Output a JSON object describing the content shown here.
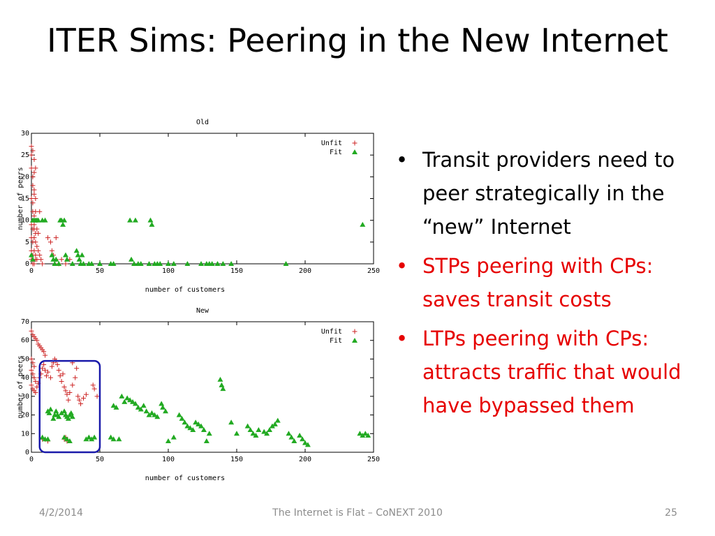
{
  "slide": {
    "title": "ITER Sims: Peering in the New Internet",
    "bullets": [
      {
        "text": "Transit providers need to peer strategically in the “new” Internet",
        "color": "#000000"
      },
      {
        "text": "STPs peering with CPs: saves transit costs",
        "color": "#e60000"
      },
      {
        "text": "LTPs peering with CPs: attracts traffic that would have bypassed them",
        "color": "#e60000"
      }
    ],
    "bullet_glyph": "•",
    "footer": {
      "date": "4/2/2014",
      "center": "The Internet is Flat – CoNEXT 2010",
      "page": "25"
    }
  },
  "chart_data": [
    {
      "type": "scatter",
      "title": "Old",
      "xlabel": "number of customers",
      "ylabel": "number of peers",
      "xlim": [
        0,
        250
      ],
      "ylim": [
        0,
        30
      ],
      "xticks": [
        0,
        50,
        100,
        150,
        200,
        250
      ],
      "yticks": [
        0,
        5,
        10,
        15,
        20,
        25,
        30
      ],
      "legend_position": "top-right",
      "grid": false,
      "series": [
        {
          "name": "Unfit",
          "marker": "plus",
          "color": "#cc2222",
          "points": [
            [
              0,
              27
            ],
            [
              0,
              25
            ],
            [
              1,
              26
            ],
            [
              0,
              22
            ],
            [
              1,
              20
            ],
            [
              2,
              21
            ],
            [
              3,
              22
            ],
            [
              1,
              18
            ],
            [
              2,
              17
            ],
            [
              0,
              15
            ],
            [
              1,
              14
            ],
            [
              2,
              16
            ],
            [
              3,
              15
            ],
            [
              1,
              12
            ],
            [
              2,
              11
            ],
            [
              3,
              12
            ],
            [
              4,
              10
            ],
            [
              0,
              9
            ],
            [
              1,
              8
            ],
            [
              2,
              8
            ],
            [
              3,
              7
            ],
            [
              0,
              6
            ],
            [
              1,
              5
            ],
            [
              2,
              6
            ],
            [
              3,
              5
            ],
            [
              4,
              4
            ],
            [
              0,
              3
            ],
            [
              1,
              2
            ],
            [
              2,
              3
            ],
            [
              3,
              2
            ],
            [
              4,
              1
            ],
            [
              0,
              1
            ],
            [
              1,
              0
            ],
            [
              2,
              0
            ],
            [
              3,
              1
            ],
            [
              5,
              3
            ],
            [
              5,
              7
            ],
            [
              6,
              2
            ],
            [
              7,
              1
            ],
            [
              8,
              0
            ],
            [
              12,
              6
            ],
            [
              14,
              5
            ],
            [
              16,
              2
            ],
            [
              18,
              1
            ],
            [
              20,
              0
            ],
            [
              18,
              6
            ],
            [
              15,
              3
            ],
            [
              22,
              1
            ],
            [
              25,
              0
            ],
            [
              28,
              1
            ],
            [
              6,
              12
            ],
            [
              2,
              24
            ],
            [
              2,
              9
            ],
            [
              4,
              8
            ]
          ]
        },
        {
          "name": "Fit",
          "marker": "triangle",
          "color": "#22aa22",
          "points": [
            [
              1,
              10
            ],
            [
              2,
              10
            ],
            [
              3,
              10
            ],
            [
              4,
              10
            ],
            [
              5,
              10
            ],
            [
              8,
              10
            ],
            [
              10,
              10
            ],
            [
              0,
              2
            ],
            [
              1,
              1
            ],
            [
              15,
              2
            ],
            [
              16,
              1
            ],
            [
              17,
              0
            ],
            [
              18,
              1
            ],
            [
              20,
              0
            ],
            [
              21,
              10
            ],
            [
              22,
              10
            ],
            [
              23,
              9
            ],
            [
              24,
              10
            ],
            [
              25,
              2
            ],
            [
              26,
              1
            ],
            [
              30,
              0
            ],
            [
              33,
              3
            ],
            [
              34,
              2
            ],
            [
              35,
              1
            ],
            [
              36,
              0
            ],
            [
              37,
              2
            ],
            [
              38,
              0
            ],
            [
              42,
              0
            ],
            [
              44,
              0
            ],
            [
              50,
              0
            ],
            [
              58,
              0
            ],
            [
              60,
              0
            ],
            [
              72,
              10
            ],
            [
              73,
              1
            ],
            [
              75,
              0
            ],
            [
              76,
              10
            ],
            [
              78,
              0
            ],
            [
              80,
              0
            ],
            [
              86,
              0
            ],
            [
              87,
              10
            ],
            [
              88,
              9
            ],
            [
              90,
              0
            ],
            [
              92,
              0
            ],
            [
              94,
              0
            ],
            [
              100,
              0
            ],
            [
              104,
              0
            ],
            [
              114,
              0
            ],
            [
              124,
              0
            ],
            [
              128,
              0
            ],
            [
              130,
              0
            ],
            [
              132,
              0
            ],
            [
              136,
              0
            ],
            [
              140,
              0
            ],
            [
              146,
              0
            ],
            [
              186,
              0
            ],
            [
              242,
              9
            ]
          ]
        }
      ]
    },
    {
      "type": "scatter",
      "title": "New",
      "xlabel": "number of customers",
      "ylabel": "number of peers",
      "xlim": [
        0,
        250
      ],
      "ylim": [
        0,
        70
      ],
      "xticks": [
        0,
        50,
        100,
        150,
        200,
        250
      ],
      "yticks": [
        0,
        10,
        20,
        30,
        40,
        50,
        60,
        70
      ],
      "legend_position": "top-right",
      "grid": false,
      "highlight_box": {
        "x": [
          6,
          50
        ],
        "y": [
          0,
          49
        ],
        "color": "#1a1aaa"
      },
      "series": [
        {
          "name": "Unfit",
          "marker": "plus",
          "color": "#cc2222",
          "points": [
            [
              0,
              65
            ],
            [
              1,
              63
            ],
            [
              2,
              62
            ],
            [
              3,
              61
            ],
            [
              4,
              60
            ],
            [
              5,
              58
            ],
            [
              6,
              57
            ],
            [
              7,
              56
            ],
            [
              8,
              55
            ],
            [
              9,
              54
            ],
            [
              10,
              52
            ],
            [
              0,
              50
            ],
            [
              1,
              48
            ],
            [
              2,
              46
            ],
            [
              0,
              44
            ],
            [
              1,
              42
            ],
            [
              2,
              40
            ],
            [
              3,
              38
            ],
            [
              0,
              36
            ],
            [
              1,
              34
            ],
            [
              2,
              33
            ],
            [
              3,
              32
            ],
            [
              4,
              35
            ],
            [
              5,
              37
            ],
            [
              6,
              40
            ],
            [
              7,
              42
            ],
            [
              8,
              45
            ],
            [
              9,
              47
            ],
            [
              10,
              44
            ],
            [
              11,
              41
            ],
            [
              12,
              43
            ],
            [
              14,
              40
            ],
            [
              15,
              46
            ],
            [
              16,
              48
            ],
            [
              17,
              50
            ],
            [
              18,
              49
            ],
            [
              19,
              47
            ],
            [
              20,
              44
            ],
            [
              21,
              41
            ],
            [
              22,
              38
            ],
            [
              23,
              42
            ],
            [
              24,
              35
            ],
            [
              25,
              33
            ],
            [
              26,
              31
            ],
            [
              27,
              28
            ],
            [
              28,
              32
            ],
            [
              30,
              36
            ],
            [
              32,
              40
            ],
            [
              34,
              30
            ],
            [
              35,
              28
            ],
            [
              36,
              26
            ],
            [
              38,
              29
            ],
            [
              40,
              31
            ],
            [
              45,
              36
            ],
            [
              46,
              34
            ],
            [
              48,
              30
            ],
            [
              8,
              7
            ],
            [
              10,
              7
            ],
            [
              12,
              6
            ],
            [
              24,
              7
            ],
            [
              25,
              8
            ],
            [
              26,
              6
            ],
            [
              30,
              48
            ],
            [
              33,
              45
            ]
          ]
        },
        {
          "name": "Fit",
          "marker": "triangle",
          "color": "#22aa22",
          "points": [
            [
              12,
              22
            ],
            [
              13,
              21
            ],
            [
              14,
              23
            ],
            [
              16,
              18
            ],
            [
              17,
              20
            ],
            [
              18,
              22
            ],
            [
              19,
              20
            ],
            [
              20,
              19
            ],
            [
              22,
              21
            ],
            [
              24,
              22
            ],
            [
              25,
              20
            ],
            [
              26,
              19
            ],
            [
              27,
              18
            ],
            [
              28,
              20
            ],
            [
              29,
              21
            ],
            [
              30,
              19
            ],
            [
              8,
              8
            ],
            [
              10,
              7
            ],
            [
              12,
              7
            ],
            [
              24,
              8
            ],
            [
              26,
              7
            ],
            [
              28,
              6
            ],
            [
              40,
              7
            ],
            [
              42,
              8
            ],
            [
              44,
              7
            ],
            [
              46,
              8
            ],
            [
              58,
              8
            ],
            [
              60,
              7
            ],
            [
              64,
              7
            ],
            [
              66,
              30
            ],
            [
              68,
              27
            ],
            [
              60,
              25
            ],
            [
              62,
              24
            ],
            [
              70,
              29
            ],
            [
              72,
              28
            ],
            [
              74,
              27
            ],
            [
              76,
              26
            ],
            [
              78,
              24
            ],
            [
              80,
              23
            ],
            [
              82,
              25
            ],
            [
              84,
              22
            ],
            [
              86,
              20
            ],
            [
              88,
              21
            ],
            [
              90,
              20
            ],
            [
              92,
              19
            ],
            [
              95,
              26
            ],
            [
              96,
              24
            ],
            [
              98,
              22
            ],
            [
              100,
              6
            ],
            [
              104,
              8
            ],
            [
              108,
              20
            ],
            [
              110,
              18
            ],
            [
              112,
              16
            ],
            [
              114,
              14
            ],
            [
              116,
              13
            ],
            [
              118,
              12
            ],
            [
              120,
              16
            ],
            [
              122,
              15
            ],
            [
              124,
              14
            ],
            [
              126,
              12
            ],
            [
              128,
              6
            ],
            [
              130,
              10
            ],
            [
              138,
              39
            ],
            [
              139,
              36
            ],
            [
              140,
              34
            ],
            [
              146,
              16
            ],
            [
              150,
              10
            ],
            [
              158,
              14
            ],
            [
              160,
              12
            ],
            [
              162,
              10
            ],
            [
              164,
              9
            ],
            [
              166,
              12
            ],
            [
              170,
              11
            ],
            [
              172,
              10
            ],
            [
              174,
              12
            ],
            [
              176,
              14
            ],
            [
              178,
              15
            ],
            [
              180,
              17
            ],
            [
              188,
              10
            ],
            [
              190,
              8
            ],
            [
              192,
              6
            ],
            [
              196,
              9
            ],
            [
              198,
              7
            ],
            [
              200,
              5
            ],
            [
              202,
              4
            ],
            [
              240,
              10
            ],
            [
              242,
              9
            ],
            [
              244,
              10
            ],
            [
              246,
              9
            ]
          ]
        }
      ]
    }
  ]
}
